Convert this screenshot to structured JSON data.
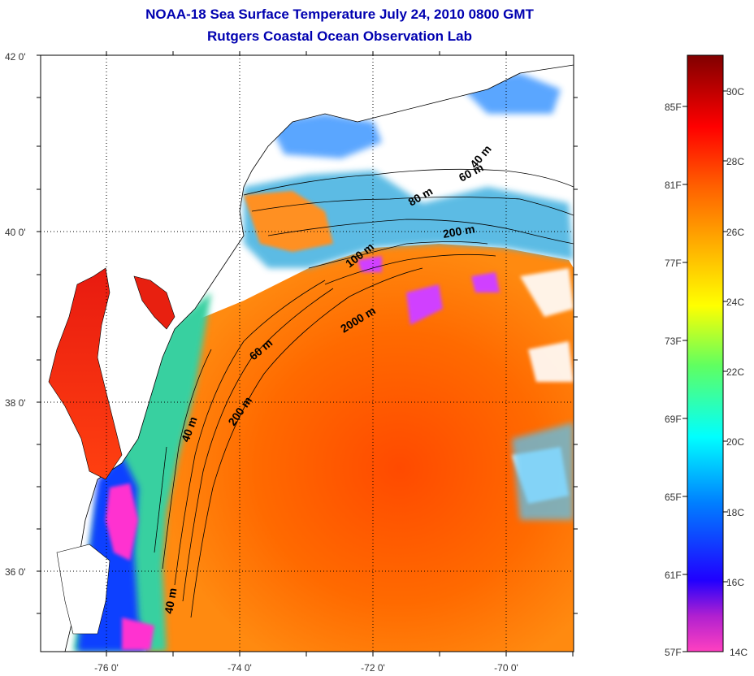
{
  "title": {
    "line1": "NOAA-18 Sea Surface Temperature July 24, 2010 0800 GMT",
    "line2": "Rutgers Coastal Ocean Observation Lab"
  },
  "axes": {
    "y_labels": [
      "42 0'",
      "40 0'",
      "38 0'",
      "36 0'"
    ],
    "x_labels": [
      "-76 0'",
      "-74 0'",
      "-72 0'",
      "-70 0'"
    ]
  },
  "contours": [
    "40 m",
    "60 m",
    "80 m",
    "200 m",
    "100 m",
    "2000 m",
    "60 m",
    "40 m",
    "200 m",
    "40 m"
  ],
  "colorbar": {
    "fahrenheit": [
      "85F",
      "81F",
      "77F",
      "73F",
      "69F",
      "65F",
      "61F",
      "57F"
    ],
    "celsius": [
      "30C",
      "28C",
      "26C",
      "24C",
      "22C",
      "20C",
      "18C",
      "16C",
      "14C"
    ],
    "colors": [
      "#ff40c0",
      "#8000c0",
      "#0000ff",
      "#00a0ff",
      "#00ffff",
      "#40ff80",
      "#ffff00",
      "#ffa000",
      "#ff4000",
      "#e00000",
      "#800000"
    ]
  },
  "chart_data": {
    "type": "heatmap",
    "title": "NOAA-18 Sea Surface Temperature July 24, 2010 0800 GMT",
    "subtitle": "Rutgers Coastal Ocean Observation Lab",
    "x_ticks": [
      -76,
      -74,
      -72,
      -70
    ],
    "y_ticks": [
      36,
      38,
      40,
      42
    ],
    "colorbar_range_f": [
      57,
      87
    ],
    "colorbar_range_c": [
      14,
      31
    ]
  }
}
